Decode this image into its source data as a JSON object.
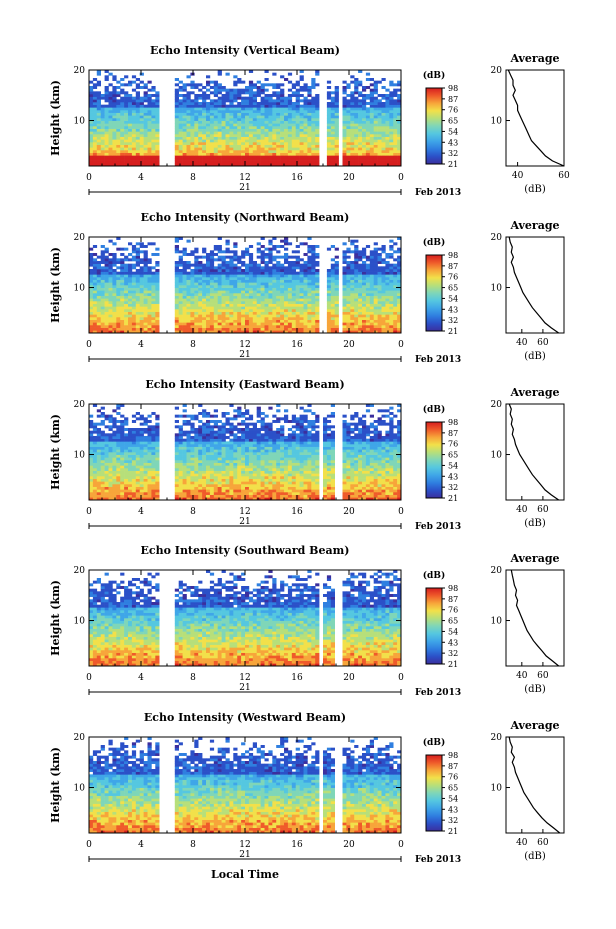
{
  "figure": {
    "xlabel": "Local Time",
    "date_label": "Feb 2013",
    "day_label": "21",
    "colorbar_unit": "(dB)",
    "avg_title": "Average",
    "avg_xlabel": "(dB)"
  },
  "colors": {
    "scale": [
      "#3b2f9e",
      "#2b50c8",
      "#2f7fe0",
      "#3fa6e8",
      "#55c7e0",
      "#7fd6b8",
      "#b7df7a",
      "#f2e04a",
      "#f7a53a",
      "#ef5a2a",
      "#d61f1f"
    ]
  },
  "chart_data": [
    {
      "type": "heatmap",
      "title": "Echo Intensity (Vertical Beam)",
      "xlabel": "",
      "ylabel": "Height (km)",
      "xlim": [
        0,
        24
      ],
      "ylim": [
        1,
        20
      ],
      "x_ticks": [
        "0",
        "4",
        "8",
        "12",
        "16",
        "20",
        "0"
      ],
      "y_ticks": [
        "10",
        "20"
      ],
      "colorbar_ticks": [
        "98",
        "87",
        "76",
        "65",
        "54",
        "43",
        "32",
        "21"
      ],
      "data_gaps_hours": [
        [
          5.4,
          6.5
        ],
        [
          17.6,
          18.3
        ],
        [
          19.1,
          19.6
        ]
      ],
      "avg_profile": {
        "xlim": [
          35,
          60
        ],
        "x_ticks": [
          "40",
          "60"
        ],
        "y_ticks": [
          "10",
          "20"
        ],
        "height_km": [
          1,
          2,
          3,
          4,
          5,
          6,
          7,
          8,
          9,
          10,
          11,
          12,
          13,
          14,
          15,
          16,
          17,
          18,
          19,
          20
        ],
        "db": [
          60,
          55,
          52,
          50,
          48,
          46,
          45,
          44,
          43,
          42,
          41,
          40,
          40,
          39,
          38,
          39,
          38,
          38,
          37,
          36
        ]
      }
    },
    {
      "type": "heatmap",
      "title": "Echo Intensity (Northward Beam)",
      "xlabel": "",
      "ylabel": "Height (km)",
      "xlim": [
        0,
        24
      ],
      "ylim": [
        1,
        20
      ],
      "x_ticks": [
        "0",
        "4",
        "8",
        "12",
        "16",
        "20",
        "0"
      ],
      "y_ticks": [
        "10",
        "20"
      ],
      "colorbar_ticks": [
        "98",
        "87",
        "76",
        "65",
        "54",
        "43",
        "32",
        "21"
      ],
      "data_gaps_hours": [
        [
          5.4,
          6.5
        ],
        [
          17.8,
          18.3
        ],
        [
          19.2,
          19.6
        ]
      ],
      "avg_profile": {
        "xlim": [
          25,
          80
        ],
        "x_ticks": [
          "40",
          "60"
        ],
        "y_ticks": [
          "10",
          "20"
        ],
        "height_km": [
          1,
          2,
          3,
          4,
          5,
          6,
          7,
          8,
          9,
          10,
          11,
          12,
          13,
          14,
          15,
          16,
          17,
          18,
          19,
          20
        ],
        "db": [
          75,
          68,
          62,
          58,
          54,
          50,
          47,
          44,
          41,
          39,
          37,
          35,
          33,
          32,
          30,
          32,
          30,
          31,
          29,
          28
        ]
      }
    },
    {
      "type": "heatmap",
      "title": "Echo Intensity (Eastward Beam)",
      "xlabel": "",
      "ylabel": "Height (km)",
      "xlim": [
        0,
        24
      ],
      "ylim": [
        1,
        20
      ],
      "x_ticks": [
        "0",
        "4",
        "8",
        "12",
        "16",
        "20",
        "0"
      ],
      "y_ticks": [
        "10",
        "20"
      ],
      "colorbar_ticks": [
        "98",
        "87",
        "76",
        "65",
        "54",
        "43",
        "32",
        "21"
      ],
      "data_gaps_hours": [
        [
          5.4,
          6.5
        ],
        [
          17.6,
          18.1
        ],
        [
          19.0,
          19.5
        ]
      ],
      "avg_profile": {
        "xlim": [
          25,
          80
        ],
        "x_ticks": [
          "40",
          "60"
        ],
        "y_ticks": [
          "10",
          "20"
        ],
        "height_km": [
          1,
          2,
          3,
          4,
          5,
          6,
          7,
          8,
          9,
          10,
          11,
          12,
          13,
          14,
          15,
          16,
          17,
          18,
          19,
          20
        ],
        "db": [
          75,
          68,
          62,
          58,
          54,
          50,
          47,
          44,
          41,
          38,
          36,
          34,
          33,
          31,
          32,
          30,
          31,
          29,
          30,
          28
        ]
      }
    },
    {
      "type": "heatmap",
      "title": "Echo Intensity (Southward Beam)",
      "xlabel": "",
      "ylabel": "Height (km)",
      "xlim": [
        0,
        24
      ],
      "ylim": [
        1,
        20
      ],
      "x_ticks": [
        "0",
        "4",
        "8",
        "12",
        "16",
        "20",
        "0"
      ],
      "y_ticks": [
        "10",
        "20"
      ],
      "colorbar_ticks": [
        "98",
        "87",
        "76",
        "65",
        "54",
        "43",
        "32",
        "21"
      ],
      "data_gaps_hours": [
        [
          5.4,
          6.5
        ],
        [
          17.6,
          18.0
        ],
        [
          19.0,
          19.4
        ]
      ],
      "avg_profile": {
        "xlim": [
          25,
          80
        ],
        "x_ticks": [
          "40",
          "60"
        ],
        "y_ticks": [
          "10",
          "20"
        ],
        "height_km": [
          1,
          2,
          3,
          4,
          5,
          6,
          7,
          8,
          9,
          10,
          11,
          12,
          13,
          14,
          15,
          16,
          17,
          18,
          19,
          20
        ],
        "db": [
          75,
          69,
          63,
          59,
          55,
          51,
          48,
          45,
          43,
          41,
          39,
          37,
          35,
          36,
          34,
          35,
          33,
          32,
          31,
          30
        ]
      }
    },
    {
      "type": "heatmap",
      "title": "Echo Intensity (Westward Beam)",
      "xlabel": "Local Time",
      "ylabel": "Height (km)",
      "xlim": [
        0,
        24
      ],
      "ylim": [
        1,
        20
      ],
      "x_ticks": [
        "0",
        "4",
        "8",
        "12",
        "16",
        "20",
        "0"
      ],
      "y_ticks": [
        "10",
        "20"
      ],
      "colorbar_ticks": [
        "98",
        "87",
        "76",
        "65",
        "54",
        "43",
        "32",
        "21"
      ],
      "data_gaps_hours": [
        [
          5.4,
          6.5
        ],
        [
          17.6,
          18.1
        ],
        [
          19.0,
          19.5
        ]
      ],
      "avg_profile": {
        "xlim": [
          25,
          80
        ],
        "x_ticks": [
          "40",
          "60"
        ],
        "y_ticks": [
          "10",
          "20"
        ],
        "height_km": [
          1,
          2,
          3,
          4,
          5,
          6,
          7,
          8,
          9,
          10,
          11,
          12,
          13,
          14,
          15,
          16,
          17,
          18,
          19,
          20
        ],
        "db": [
          76,
          70,
          64,
          59,
          55,
          51,
          48,
          45,
          42,
          40,
          38,
          36,
          34,
          33,
          31,
          33,
          30,
          31,
          29,
          28
        ]
      }
    }
  ]
}
